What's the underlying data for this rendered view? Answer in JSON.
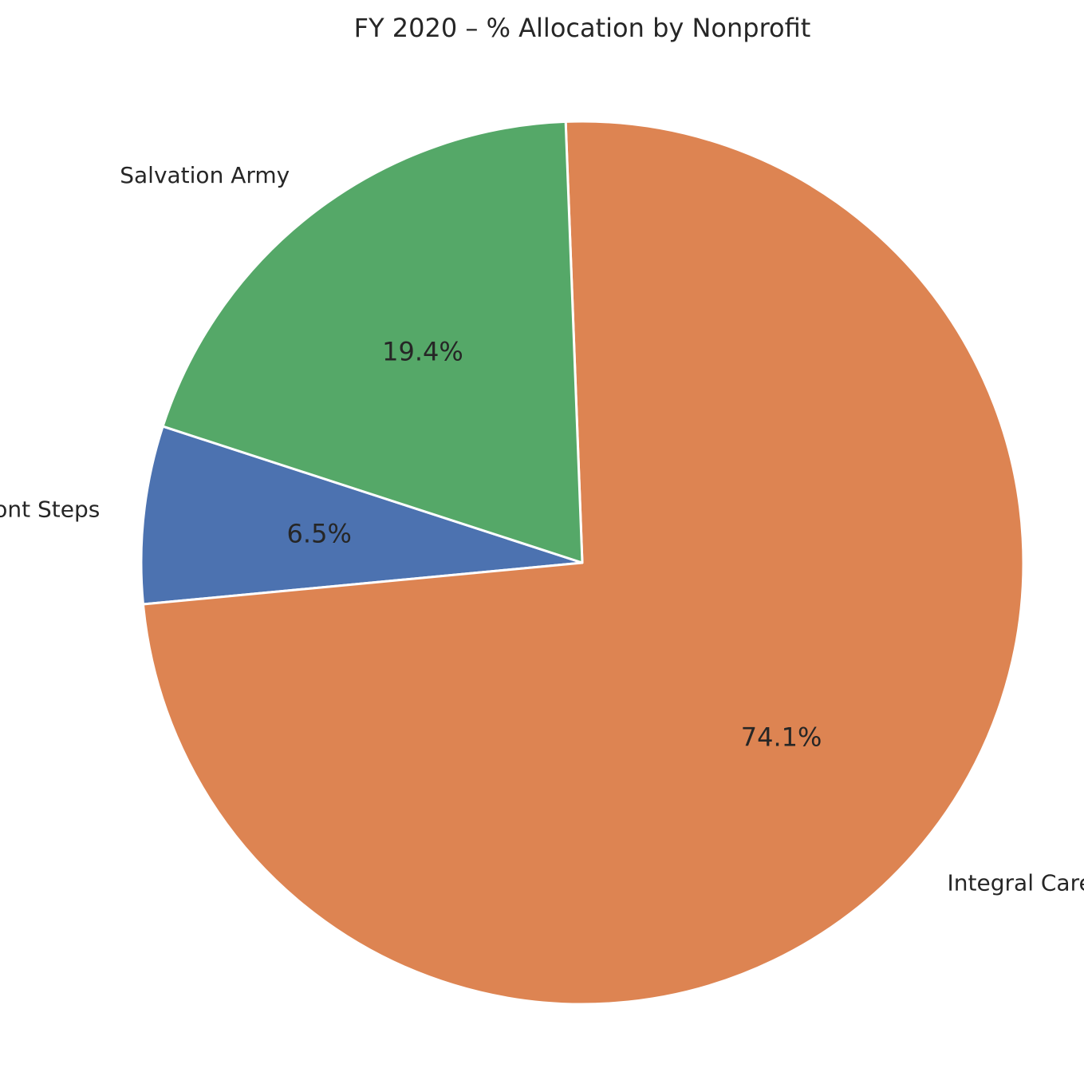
{
  "chart_data": {
    "type": "pie",
    "title": "FY 2020 – % Allocation by Nonprofit",
    "start_angle_deg": 162,
    "direction": "counterclockwise",
    "slices": [
      {
        "label": "Front Steps",
        "value": 6.5,
        "pct_label": "6.5%",
        "color": "#4C72B0"
      },
      {
        "label": "Integral Care",
        "value": 74.1,
        "pct_label": "74.1%",
        "color": "#DD8452"
      },
      {
        "label": "Salvation Army",
        "value": 19.4,
        "pct_label": "19.4%",
        "color": "#55A868"
      }
    ]
  }
}
